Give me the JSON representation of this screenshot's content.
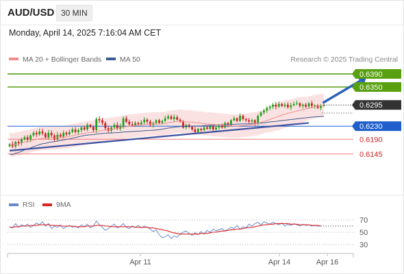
{
  "header": {
    "symbol": "AUD/USD",
    "timeframe": "30 MIN"
  },
  "datetime": "Monday, April 14, 2025 7:16:04 AM CET",
  "credit": "Research © 2025 Trading Central",
  "colors": {
    "up": "#20a020",
    "down": "#cc2222",
    "support": "#1f5fcc",
    "resistance": "#58a010",
    "ma20": "#f28b8b",
    "ma50": "#3a5a90",
    "band": "#fbe2e2",
    "rsi": "#6688cc",
    "rsi_ma": "#dd2222"
  },
  "chart_data": {
    "type": "candlestick",
    "title": "AUD/USD",
    "timeframe": "30 MIN",
    "legend": [
      {
        "name": "MA 20 + Bollinger Bands",
        "color": "#f28b8b"
      },
      {
        "name": "MA 50",
        "color": "#3a5a90"
      }
    ],
    "x_ticks": [
      "Apr 11",
      "Apr 14",
      "Apr 16"
    ],
    "y_range": [
      0.6025,
      0.6415
    ],
    "last_price": "0.6295",
    "levels": [
      {
        "value": 0.639,
        "label": "0.6390",
        "role": "resistance",
        "style": "box-green"
      },
      {
        "value": 0.635,
        "label": "0.6350",
        "role": "resistance",
        "style": "box-green"
      },
      {
        "value": 0.6295,
        "label": "0.6295",
        "role": "last",
        "style": "box-dark"
      },
      {
        "value": 0.623,
        "label": "0.6230",
        "role": "pivot",
        "style": "box-blue"
      },
      {
        "value": 0.619,
        "label": "0.6190",
        "role": "support",
        "style": "text-red"
      },
      {
        "value": 0.6145,
        "label": "0.6145",
        "role": "support",
        "style": "text-red"
      }
    ],
    "closes": [
      0.6175,
      0.6168,
      0.6182,
      0.6178,
      0.619,
      0.6196,
      0.6189,
      0.6202,
      0.621,
      0.6205,
      0.6214,
      0.6208,
      0.6196,
      0.621,
      0.6202,
      0.619,
      0.6204,
      0.6198,
      0.621,
      0.6205,
      0.6212,
      0.622,
      0.6212,
      0.6218,
      0.6226,
      0.622,
      0.6234,
      0.6228,
      0.6218,
      0.6252,
      0.6248,
      0.624,
      0.6224,
      0.6216,
      0.6226,
      0.6234,
      0.6222,
      0.623,
      0.6254,
      0.6244,
      0.6236,
      0.6232,
      0.624,
      0.6236,
      0.6242,
      0.625,
      0.6244,
      0.6234,
      0.624,
      0.6248,
      0.624,
      0.6246,
      0.6254,
      0.626,
      0.6252,
      0.6258,
      0.625,
      0.6244,
      0.6226,
      0.6234,
      0.6228,
      0.622,
      0.6212,
      0.6222,
      0.6218,
      0.6226,
      0.6222,
      0.623,
      0.622,
      0.6226,
      0.6232,
      0.6226,
      0.624,
      0.6234,
      0.6248,
      0.6254,
      0.6246,
      0.6262,
      0.6252,
      0.6248,
      0.6244,
      0.6248,
      0.624,
      0.6262,
      0.6272,
      0.6278,
      0.6286,
      0.629,
      0.6296,
      0.629,
      0.6298,
      0.6292,
      0.6296,
      0.6288,
      0.6294,
      0.6298,
      0.63,
      0.6292,
      0.6296,
      0.629,
      0.63,
      0.6292,
      0.6294,
      0.6286,
      0.6292,
      0.6295
    ],
    "trendlines": [
      {
        "name": "support-trendline",
        "from": [
          0,
          0.6155
        ],
        "to": [
          100,
          0.624
        ]
      },
      {
        "name": "target-arrow",
        "from": [
          105,
          0.6303
        ],
        "to": [
          119,
          0.6381
        ]
      }
    ],
    "rsi": {
      "legend": [
        {
          "name": "RSI",
          "color": "#6688cc"
        },
        {
          "name": "9MA",
          "color": "#dd2222"
        }
      ],
      "y_range": [
        20,
        80
      ],
      "ticks": [
        70,
        50,
        30
      ],
      "values": [
        59,
        57,
        64,
        58,
        62,
        60,
        63,
        58,
        61,
        65,
        62,
        67,
        60,
        64,
        56,
        60,
        58,
        62,
        56,
        59,
        61,
        58,
        60,
        57,
        62,
        59,
        63,
        57,
        60,
        68,
        62,
        58,
        53,
        56,
        60,
        63,
        57,
        59,
        64,
        58,
        56,
        60,
        58,
        61,
        57,
        60,
        58,
        55,
        51,
        54,
        46,
        41,
        43,
        46,
        40,
        44,
        42,
        47,
        50,
        52,
        48,
        45,
        49,
        46,
        51,
        47,
        53,
        50,
        55,
        52,
        54,
        56,
        52,
        55,
        58,
        56,
        61,
        55,
        59,
        57,
        63,
        60,
        64,
        66,
        62,
        67,
        65,
        63,
        66,
        64,
        62,
        65,
        60,
        63,
        61,
        64,
        62,
        60,
        63,
        61,
        62,
        60,
        61,
        60,
        60
      ],
      "ma_values": [
        58,
        58,
        59,
        59,
        60,
        60,
        60,
        61,
        61,
        61,
        62,
        62,
        62,
        62,
        61,
        61,
        61,
        60,
        60,
        60,
        60,
        60,
        59,
        59,
        59,
        59,
        60,
        60,
        60,
        61,
        61,
        61,
        60,
        60,
        59,
        59,
        59,
        59,
        59,
        59,
        59,
        59,
        58,
        58,
        58,
        58,
        58,
        57,
        57,
        56,
        55,
        54,
        53,
        52,
        50,
        49,
        48,
        47,
        47,
        47,
        47,
        47,
        47,
        47,
        48,
        48,
        48,
        49,
        50,
        50,
        51,
        52,
        52,
        53,
        54,
        54,
        55,
        55,
        56,
        57,
        58,
        58,
        59,
        60,
        61,
        62,
        62,
        63,
        63,
        64,
        64,
        64,
        64,
        64,
        63,
        63,
        63,
        62,
        62,
        62,
        62,
        61,
        61,
        61,
        60
      ]
    }
  }
}
